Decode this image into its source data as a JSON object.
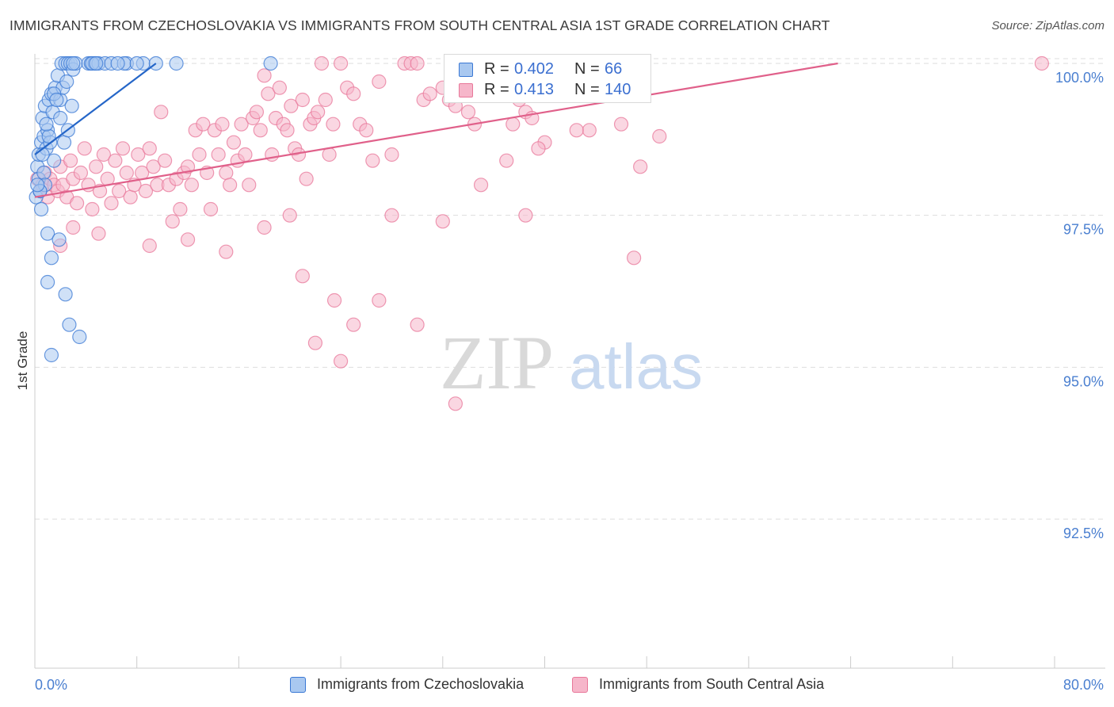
{
  "title": "IMMIGRANTS FROM CZECHOSLOVAKIA VS IMMIGRANTS FROM SOUTH CENTRAL ASIA 1ST GRADE CORRELATION CHART",
  "source": "Source: ZipAtlas.com",
  "watermark": {
    "zip": "ZIP",
    "atlas": "atlas"
  },
  "colors": {
    "blue_fill": "#a9c8f0",
    "blue_stroke": "#3a78d4",
    "blue_line": "#2566c8",
    "pink_fill": "#f6b6ca",
    "pink_stroke": "#e87799",
    "pink_line": "#e0608a",
    "accent_text": "#3b6fd0",
    "grid": "#dddddd"
  },
  "legend_top": {
    "rows": [
      {
        "r_label": "R =",
        "r_value": "0.402",
        "n_label": "N =",
        "n_value": "66",
        "series": "blue"
      },
      {
        "r_label": "R =",
        "r_value": "0.413",
        "n_label": "N =",
        "n_value": "140",
        "series": "pink"
      }
    ]
  },
  "legend_bottom": [
    {
      "label": "Immigrants from Czechoslovakia",
      "series": "blue"
    },
    {
      "label": "Immigrants from South Central Asia",
      "series": "pink"
    }
  ],
  "chart_data": {
    "type": "scatter",
    "title": "IMMIGRANTS FROM CZECHOSLOVAKIA VS IMMIGRANTS FROM SOUTH CENTRAL ASIA 1ST GRADE CORRELATION CHART",
    "xlabel": "",
    "ylabel": "1st Grade",
    "xlim": [
      0,
      80
    ],
    "ylim": [
      90.5,
      100.2
    ],
    "x_tick_labels": [
      {
        "value": 0,
        "label": "0.0%"
      },
      {
        "value": 80,
        "label": "80.0%"
      }
    ],
    "x_minor_ticks": [
      0,
      8,
      16,
      24,
      32,
      40,
      48,
      56,
      64,
      72,
      80
    ],
    "y_ticks": [
      {
        "value": 100,
        "label": "100.0%"
      },
      {
        "value": 97.5,
        "label": "97.5%"
      },
      {
        "value": 95,
        "label": "95.0%"
      },
      {
        "value": 92.5,
        "label": "92.5%"
      }
    ],
    "grid": true,
    "series": [
      {
        "name": "Immigrants from Czechoslovakia",
        "color": "blue",
        "r": 0.402,
        "n": 66,
        "trend": {
          "x0": 0.0,
          "y0": 98.5,
          "x1": 9.5,
          "y1": 100.0
        },
        "points": [
          [
            0.1,
            97.8
          ],
          [
            0.2,
            98.3
          ],
          [
            0.3,
            98.5
          ],
          [
            0.4,
            97.9
          ],
          [
            0.5,
            98.7
          ],
          [
            0.6,
            99.1
          ],
          [
            0.7,
            98.8
          ],
          [
            0.8,
            99.3
          ],
          [
            0.9,
            98.6
          ],
          [
            1.0,
            98.9
          ],
          [
            1.1,
            99.4
          ],
          [
            1.2,
            98.7
          ],
          [
            1.3,
            99.5
          ],
          [
            1.4,
            99.2
          ],
          [
            1.5,
            98.4
          ],
          [
            1.6,
            99.6
          ],
          [
            1.8,
            99.8
          ],
          [
            2.0,
            99.4
          ],
          [
            2.1,
            100.0
          ],
          [
            2.2,
            99.6
          ],
          [
            2.3,
            98.7
          ],
          [
            2.4,
            100.0
          ],
          [
            2.5,
            99.7
          ],
          [
            2.6,
            100.0
          ],
          [
            2.8,
            100.0
          ],
          [
            3.0,
            99.9
          ],
          [
            3.2,
            100.0
          ],
          [
            4.2,
            100.0
          ],
          [
            4.4,
            100.0
          ],
          [
            4.7,
            100.0
          ],
          [
            5.0,
            100.0
          ],
          [
            5.5,
            100.0
          ],
          [
            6.0,
            100.0
          ],
          [
            7.2,
            100.0
          ],
          [
            8.5,
            100.0
          ],
          [
            9.5,
            100.0
          ],
          [
            11.1,
            100.0
          ],
          [
            18.5,
            100.0
          ],
          [
            0.3,
            98.1
          ],
          [
            0.5,
            97.6
          ],
          [
            0.7,
            98.2
          ],
          [
            1.0,
            97.2
          ],
          [
            1.3,
            96.8
          ],
          [
            1.9,
            97.1
          ],
          [
            2.4,
            96.2
          ],
          [
            1.0,
            96.4
          ],
          [
            2.7,
            95.7
          ],
          [
            3.5,
            95.5
          ],
          [
            1.3,
            95.2
          ],
          [
            2.0,
            99.1
          ],
          [
            0.8,
            98.0
          ],
          [
            1.5,
            99.5
          ],
          [
            2.9,
            99.3
          ],
          [
            0.4,
            97.9
          ],
          [
            0.6,
            98.5
          ],
          [
            1.1,
            98.8
          ],
          [
            2.6,
            98.9
          ],
          [
            0.2,
            98.0
          ],
          [
            0.9,
            99.0
          ],
          [
            1.7,
            99.4
          ],
          [
            3.0,
            100.0
          ],
          [
            4.5,
            100.0
          ],
          [
            7.0,
            100.0
          ],
          [
            4.8,
            100.0
          ],
          [
            6.5,
            100.0
          ],
          [
            8.0,
            100.0
          ]
        ]
      },
      {
        "name": "Immigrants from South Central Asia",
        "color": "pink",
        "r": 0.413,
        "n": 140,
        "trend": {
          "x0": 0.0,
          "y0": 97.8,
          "x1": 63.0,
          "y1": 100.0
        },
        "points": [
          [
            0.2,
            98.1
          ],
          [
            0.4,
            97.9
          ],
          [
            0.6,
            98.0
          ],
          [
            0.8,
            98.2
          ],
          [
            1.0,
            97.8
          ],
          [
            1.2,
            98.1
          ],
          [
            1.5,
            98.0
          ],
          [
            1.8,
            97.9
          ],
          [
            2.0,
            98.3
          ],
          [
            2.2,
            98.0
          ],
          [
            2.5,
            97.8
          ],
          [
            2.8,
            98.4
          ],
          [
            3.0,
            98.1
          ],
          [
            3.3,
            97.7
          ],
          [
            3.6,
            98.2
          ],
          [
            3.9,
            98.6
          ],
          [
            4.2,
            98.0
          ],
          [
            4.5,
            97.6
          ],
          [
            4.8,
            98.3
          ],
          [
            5.1,
            97.9
          ],
          [
            5.4,
            98.5
          ],
          [
            5.7,
            98.1
          ],
          [
            6.0,
            97.7
          ],
          [
            6.3,
            98.4
          ],
          [
            6.6,
            97.9
          ],
          [
            6.9,
            98.6
          ],
          [
            7.2,
            98.2
          ],
          [
            7.5,
            97.8
          ],
          [
            7.8,
            98.0
          ],
          [
            8.1,
            98.5
          ],
          [
            8.4,
            98.2
          ],
          [
            8.7,
            97.9
          ],
          [
            9.0,
            98.6
          ],
          [
            9.3,
            98.3
          ],
          [
            9.6,
            98.0
          ],
          [
            9.9,
            99.2
          ],
          [
            10.2,
            98.4
          ],
          [
            10.5,
            98.0
          ],
          [
            10.8,
            97.4
          ],
          [
            11.1,
            98.1
          ],
          [
            11.4,
            97.6
          ],
          [
            11.7,
            98.2
          ],
          [
            12.0,
            98.3
          ],
          [
            12.3,
            98.0
          ],
          [
            12.6,
            98.9
          ],
          [
            12.9,
            98.5
          ],
          [
            13.2,
            99.0
          ],
          [
            13.5,
            98.2
          ],
          [
            13.8,
            97.6
          ],
          [
            14.1,
            98.9
          ],
          [
            14.4,
            98.5
          ],
          [
            14.7,
            99.0
          ],
          [
            15.0,
            98.2
          ],
          [
            15.3,
            98.0
          ],
          [
            15.6,
            98.7
          ],
          [
            15.9,
            98.4
          ],
          [
            16.2,
            99.0
          ],
          [
            16.5,
            98.5
          ],
          [
            16.8,
            98.0
          ],
          [
            17.1,
            99.1
          ],
          [
            17.4,
            99.2
          ],
          [
            17.7,
            98.9
          ],
          [
            18.0,
            99.8
          ],
          [
            18.3,
            99.5
          ],
          [
            18.6,
            98.5
          ],
          [
            18.9,
            99.1
          ],
          [
            19.2,
            99.6
          ],
          [
            19.5,
            99.0
          ],
          [
            19.8,
            98.9
          ],
          [
            20.1,
            99.3
          ],
          [
            20.4,
            98.6
          ],
          [
            20.7,
            98.5
          ],
          [
            21.0,
            99.4
          ],
          [
            21.3,
            98.1
          ],
          [
            21.6,
            99.0
          ],
          [
            21.9,
            99.1
          ],
          [
            22.2,
            99.2
          ],
          [
            22.5,
            100.0
          ],
          [
            22.8,
            99.4
          ],
          [
            23.1,
            98.5
          ],
          [
            23.4,
            99.0
          ],
          [
            24.0,
            100.0
          ],
          [
            24.5,
            99.6
          ],
          [
            25.0,
            99.5
          ],
          [
            25.5,
            99.0
          ],
          [
            26.0,
            98.9
          ],
          [
            26.5,
            98.4
          ],
          [
            27.0,
            99.7
          ],
          [
            28.0,
            98.5
          ],
          [
            29.0,
            100.0
          ],
          [
            29.5,
            100.0
          ],
          [
            30.0,
            100.0
          ],
          [
            30.5,
            99.4
          ],
          [
            31.0,
            99.5
          ],
          [
            32.0,
            99.6
          ],
          [
            32.5,
            99.4
          ],
          [
            33.0,
            99.3
          ],
          [
            34.0,
            99.2
          ],
          [
            34.5,
            99.0
          ],
          [
            35.0,
            100.0
          ],
          [
            36.0,
            100.0
          ],
          [
            36.5,
            99.5
          ],
          [
            37.5,
            99.0
          ],
          [
            38.0,
            99.4
          ],
          [
            38.5,
            99.2
          ],
          [
            39.0,
            99.1
          ],
          [
            40.0,
            98.7
          ],
          [
            41.0,
            99.9
          ],
          [
            41.5,
            99.8
          ],
          [
            42.0,
            100.0
          ],
          [
            43.0,
            99.5
          ],
          [
            43.5,
            98.9
          ],
          [
            46.0,
            99.0
          ],
          [
            47.5,
            98.3
          ],
          [
            49.0,
            98.8
          ],
          [
            79.0,
            100.0
          ],
          [
            21.0,
            96.5
          ],
          [
            23.5,
            96.1
          ],
          [
            25.0,
            95.7
          ],
          [
            30.0,
            95.7
          ],
          [
            22.0,
            95.4
          ],
          [
            24.0,
            95.1
          ],
          [
            27.0,
            96.1
          ],
          [
            28.0,
            97.5
          ],
          [
            32.0,
            97.4
          ],
          [
            38.5,
            97.5
          ],
          [
            47.0,
            96.8
          ],
          [
            9.0,
            97.0
          ],
          [
            12.0,
            97.1
          ],
          [
            15.0,
            96.9
          ],
          [
            18.0,
            97.3
          ],
          [
            20.0,
            97.5
          ],
          [
            5.0,
            97.2
          ],
          [
            3.0,
            97.3
          ],
          [
            2.0,
            97.0
          ],
          [
            33.0,
            94.4
          ],
          [
            35.0,
            98.0
          ],
          [
            37.0,
            98.4
          ],
          [
            39.5,
            98.6
          ],
          [
            42.5,
            98.9
          ]
        ]
      }
    ]
  }
}
